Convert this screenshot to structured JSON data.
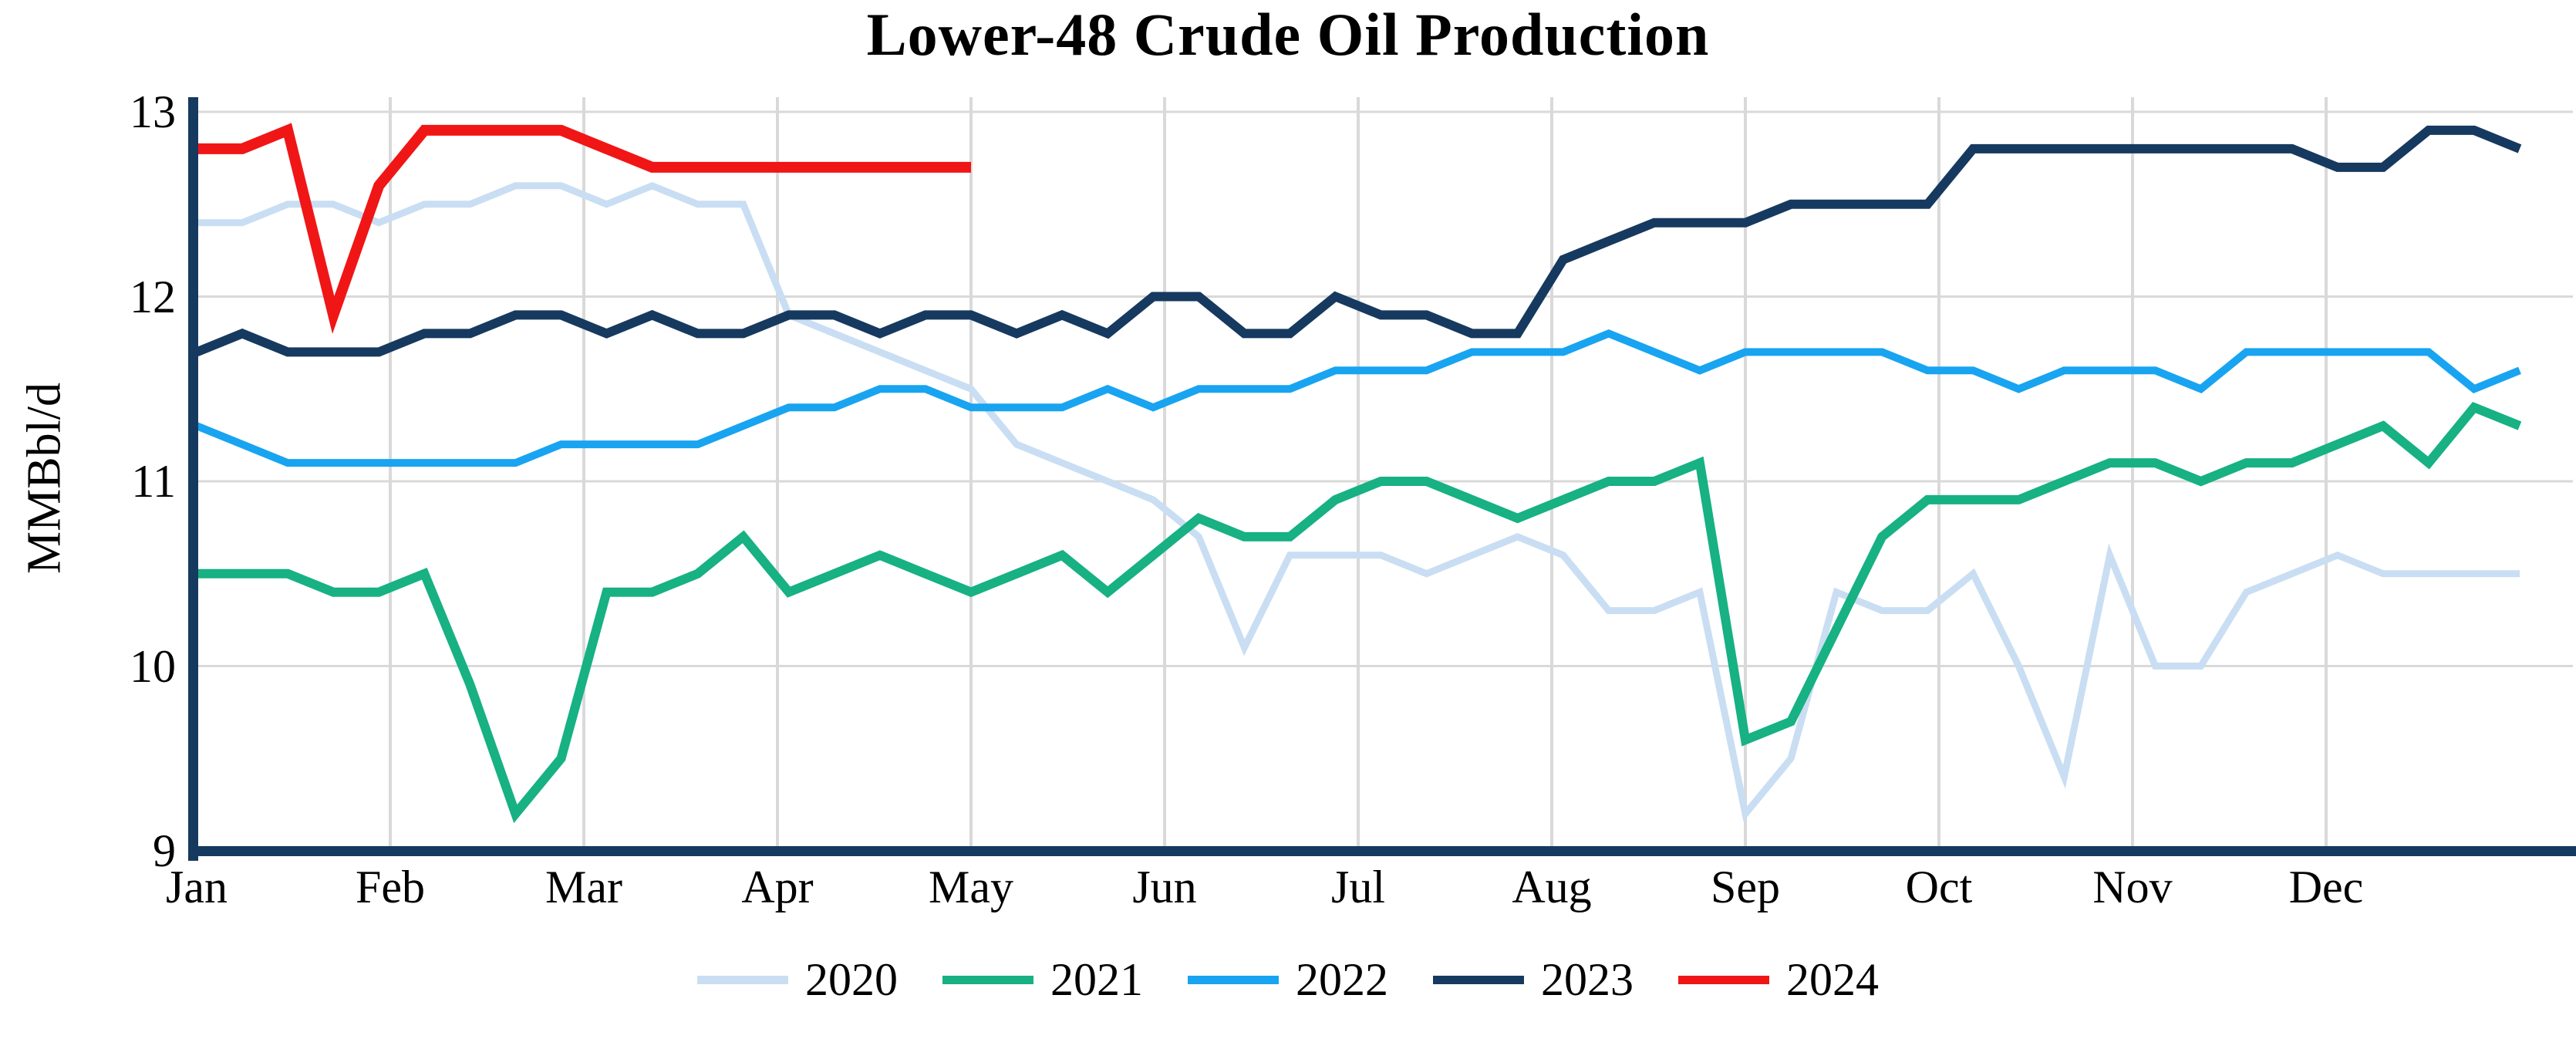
{
  "chart_data": {
    "type": "line",
    "title": "Lower-48 Crude Oil Production",
    "ylabel": "MMBbl/d",
    "ylim": [
      9,
      13
    ],
    "yticks": [
      13,
      12,
      11,
      10,
      9
    ],
    "gridline_yticks": [
      13,
      12,
      11,
      10
    ],
    "x_frequency": "weekly",
    "month_labels": [
      "Jan",
      "Feb",
      "Mar",
      "Apr",
      "May",
      "Jun",
      "Jul",
      "Aug",
      "Sep",
      "Oct",
      "Nov",
      "Dec"
    ],
    "grid": true,
    "legend_position": "bottom",
    "colors": {
      "axis": "#16395f",
      "grid": "#d9d9d9",
      "text": "#000000"
    },
    "series": [
      {
        "name": "2020",
        "color": "#c9def2",
        "values": [
          12.4,
          12.4,
          12.5,
          12.5,
          12.4,
          12.5,
          12.5,
          12.6,
          12.6,
          12.5,
          12.6,
          12.5,
          12.5,
          11.9,
          11.8,
          11.7,
          11.6,
          11.5,
          11.2,
          11.1,
          11.0,
          10.9,
          10.7,
          10.1,
          10.6,
          10.6,
          10.6,
          10.5,
          10.6,
          10.7,
          10.6,
          10.3,
          10.3,
          10.4,
          9.2,
          9.5,
          10.4,
          10.3,
          10.3,
          10.5,
          10.0,
          9.4,
          10.6,
          10.0,
          10.0,
          10.4,
          10.5,
          10.6,
          10.5,
          10.5,
          10.5,
          10.5
        ]
      },
      {
        "name": "2021",
        "color": "#17b183",
        "values": [
          10.5,
          10.5,
          10.5,
          10.4,
          10.4,
          10.5,
          9.9,
          9.2,
          9.5,
          10.4,
          10.4,
          10.5,
          10.7,
          10.4,
          10.5,
          10.6,
          10.5,
          10.4,
          10.5,
          10.6,
          10.4,
          10.6,
          10.8,
          10.7,
          10.7,
          10.9,
          11.0,
          11.0,
          10.9,
          10.8,
          10.9,
          11.0,
          11.0,
          11.1,
          9.6,
          9.7,
          10.2,
          10.7,
          10.9,
          10.9,
          10.9,
          11.0,
          11.1,
          11.1,
          11.0,
          11.1,
          11.1,
          11.2,
          11.3,
          11.1,
          11.4,
          11.3
        ]
      },
      {
        "name": "2022",
        "color": "#18a4f0",
        "values": [
          11.3,
          11.2,
          11.1,
          11.1,
          11.1,
          11.1,
          11.1,
          11.1,
          11.2,
          11.2,
          11.2,
          11.2,
          11.3,
          11.4,
          11.4,
          11.5,
          11.5,
          11.4,
          11.4,
          11.4,
          11.5,
          11.4,
          11.5,
          11.5,
          11.5,
          11.6,
          11.6,
          11.6,
          11.7,
          11.7,
          11.7,
          11.8,
          11.7,
          11.6,
          11.7,
          11.7,
          11.7,
          11.7,
          11.6,
          11.6,
          11.5,
          11.6,
          11.6,
          11.6,
          11.5,
          11.7,
          11.7,
          11.7,
          11.7,
          11.7,
          11.5,
          11.6
        ]
      },
      {
        "name": "2023",
        "color": "#16395f",
        "values": [
          11.7,
          11.8,
          11.7,
          11.7,
          11.7,
          11.8,
          11.8,
          11.9,
          11.9,
          11.8,
          11.9,
          11.8,
          11.8,
          11.9,
          11.9,
          11.8,
          11.9,
          11.9,
          11.8,
          11.9,
          11.8,
          12.0,
          12.0,
          11.8,
          11.8,
          12.0,
          11.9,
          11.9,
          11.8,
          11.8,
          12.2,
          12.3,
          12.4,
          12.4,
          12.4,
          12.5,
          12.5,
          12.5,
          12.5,
          12.8,
          12.8,
          12.8,
          12.8,
          12.8,
          12.8,
          12.8,
          12.8,
          12.7,
          12.7,
          12.9,
          12.9,
          12.8
        ]
      },
      {
        "name": "2024",
        "color": "#f01616",
        "values": [
          12.8,
          12.8,
          12.9,
          11.9,
          12.6,
          12.9,
          12.9,
          12.9,
          12.9,
          12.8,
          12.7,
          12.7,
          12.7,
          12.7,
          12.7,
          12.7,
          12.7,
          12.7
        ]
      }
    ]
  }
}
